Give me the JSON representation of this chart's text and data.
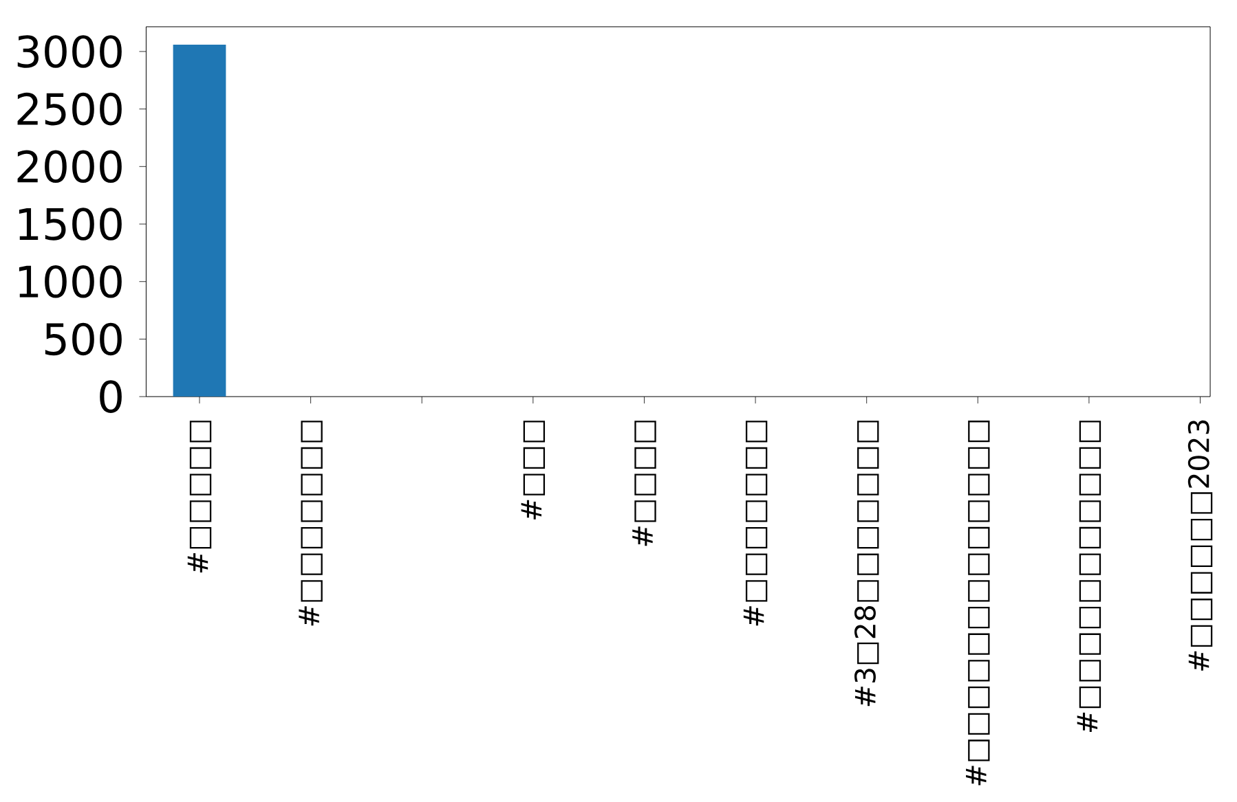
{
  "chart_data": {
    "type": "bar",
    "categories": [
      "#□□□□□",
      "#□□□□□□□",
      null,
      "#□□□",
      "#□□□□",
      "#□□□□□□□",
      "#3□28□□□□□□□",
      "#□□□□□□□□□□□□□",
      "#□□□□□□□□□□□",
      "#□□□□□□2023"
    ],
    "values": [
      3060,
      0,
      0,
      0,
      0,
      0,
      0,
      0,
      0,
      0
    ],
    "color": "#1f77b4",
    "ylim": [
      0,
      3215
    ],
    "yticks": [
      0,
      500,
      1000,
      1500,
      2000,
      2500,
      3000
    ],
    "grid": false
  }
}
